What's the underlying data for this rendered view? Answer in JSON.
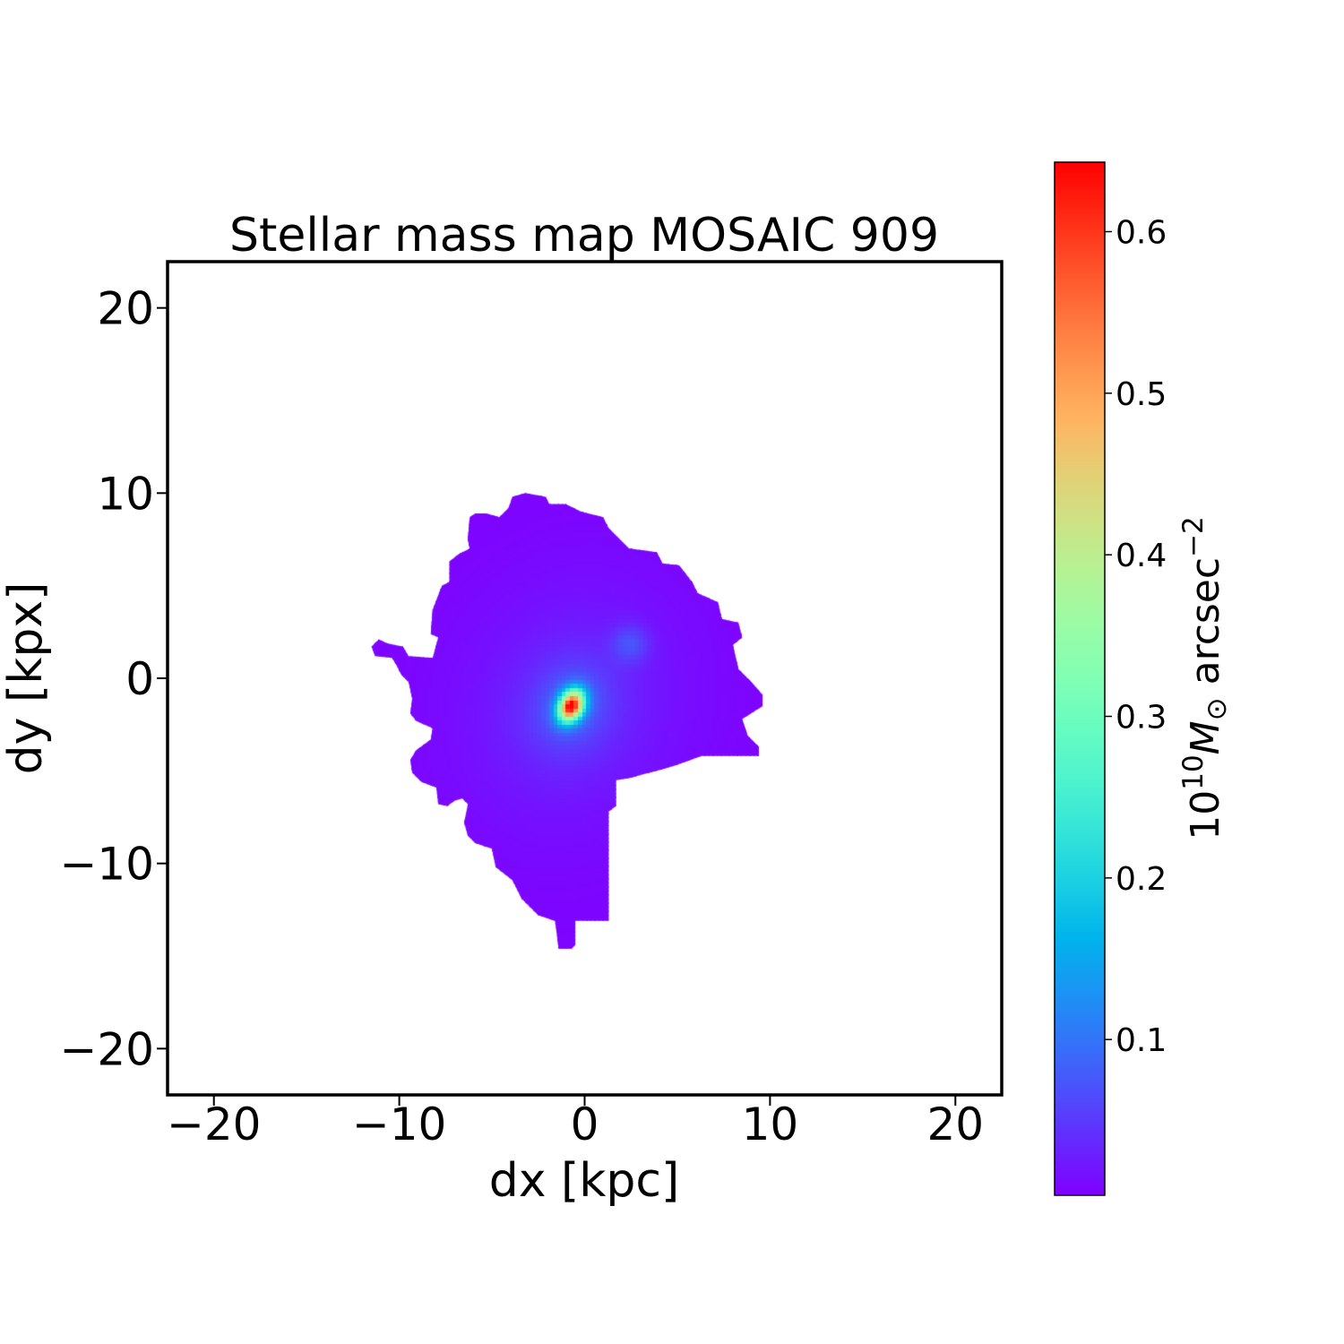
{
  "chart_data": {
    "type": "heatmap",
    "title": "Stellar mass map MOSAIC 909",
    "xlabel": "dx [kpc]",
    "ylabel": "dy [kpx]",
    "xlim": [
      -22.5,
      22.5
    ],
    "ylim": [
      -22.5,
      22.5
    ],
    "xticks": [
      -20,
      -10,
      0,
      10,
      20
    ],
    "yticks": [
      -20,
      -10,
      0,
      10,
      20
    ],
    "xtick_labels": [
      "−20",
      "−10",
      "0",
      "10",
      "20"
    ],
    "ytick_labels": [
      "−20",
      "−10",
      "0",
      "10",
      "20"
    ],
    "grid": false,
    "colormap": "rainbow",
    "colorbar": {
      "range": [
        0.0036,
        0.643
      ],
      "ticks": [
        0.1,
        0.2,
        0.3,
        0.4,
        0.5,
        0.6
      ],
      "tick_labels": [
        "0.1",
        "0.2",
        "0.3",
        "0.4",
        "0.5",
        "0.6"
      ],
      "label_base": "10",
      "label_exp": "10",
      "label_sym": "M",
      "label_sub": "⊙",
      "label_unit": " arcsec",
      "label_unit_exp": "−2"
    },
    "peak": {
      "dx": -0.7,
      "dy": -1.45,
      "value": 0.64
    },
    "secondary_peak": {
      "dx": 2.5,
      "dy": 1.9,
      "value": 0.11
    },
    "outline_kpc": [
      [
        -3.2,
        10.0
      ],
      [
        -2.1,
        9.8
      ],
      [
        -1.9,
        9.4
      ],
      [
        -1.0,
        9.4
      ],
      [
        -0.2,
        9.0
      ],
      [
        1.0,
        8.7
      ],
      [
        1.3,
        8.1
      ],
      [
        2.4,
        7.0
      ],
      [
        3.3,
        6.9
      ],
      [
        3.9,
        6.8
      ],
      [
        4.2,
        6.2
      ],
      [
        5.1,
        6.1
      ],
      [
        5.8,
        5.2
      ],
      [
        6.1,
        4.6
      ],
      [
        7.2,
        4.1
      ],
      [
        7.4,
        3.2
      ],
      [
        8.3,
        3.0
      ],
      [
        8.5,
        2.2
      ],
      [
        8.0,
        1.8
      ],
      [
        8.3,
        0.5
      ],
      [
        9.0,
        -0.2
      ],
      [
        9.6,
        -0.9
      ],
      [
        9.6,
        -1.5
      ],
      [
        8.5,
        -2.2
      ],
      [
        8.8,
        -3.1
      ],
      [
        9.4,
        -3.7
      ],
      [
        9.4,
        -4.2
      ],
      [
        6.3,
        -4.2
      ],
      [
        4.9,
        -4.7
      ],
      [
        3.9,
        -5.0
      ],
      [
        3.1,
        -5.2
      ],
      [
        2.4,
        -5.4
      ],
      [
        1.7,
        -5.5
      ],
      [
        1.7,
        -6.9
      ],
      [
        1.3,
        -7.2
      ],
      [
        1.3,
        -13.1
      ],
      [
        -0.5,
        -13.1
      ],
      [
        -0.5,
        -14.4
      ],
      [
        -0.7,
        -14.6
      ],
      [
        -1.4,
        -14.6
      ],
      [
        -1.6,
        -13.1
      ],
      [
        -2.5,
        -12.8
      ],
      [
        -3.4,
        -11.9
      ],
      [
        -3.9,
        -10.9
      ],
      [
        -4.8,
        -10.2
      ],
      [
        -5.0,
        -9.2
      ],
      [
        -5.9,
        -8.9
      ],
      [
        -6.3,
        -8.5
      ],
      [
        -6.5,
        -7.8
      ],
      [
        -6.3,
        -6.8
      ],
      [
        -6.6,
        -6.5
      ],
      [
        -7.0,
        -6.6
      ],
      [
        -7.4,
        -6.9
      ],
      [
        -7.9,
        -6.8
      ],
      [
        -8.0,
        -5.9
      ],
      [
        -8.8,
        -5.6
      ],
      [
        -9.3,
        -5.1
      ],
      [
        -9.4,
        -4.4
      ],
      [
        -9.1,
        -3.9
      ],
      [
        -8.3,
        -3.3
      ],
      [
        -8.2,
        -2.7
      ],
      [
        -9.1,
        -2.3
      ],
      [
        -9.4,
        -1.9
      ],
      [
        -9.3,
        -1.1
      ],
      [
        -9.5,
        -0.2
      ],
      [
        -9.9,
        0.2
      ],
      [
        -10.2,
        0.8
      ],
      [
        -10.4,
        1.1
      ],
      [
        -11.3,
        1.2
      ],
      [
        -11.5,
        1.7
      ],
      [
        -11.1,
        2.1
      ],
      [
        -10.7,
        1.9
      ],
      [
        -9.8,
        1.7
      ],
      [
        -9.5,
        1.2
      ],
      [
        -8.2,
        1.1
      ],
      [
        -7.9,
        2.2
      ],
      [
        -8.3,
        2.4
      ],
      [
        -8.2,
        3.7
      ],
      [
        -7.7,
        5.0
      ],
      [
        -7.3,
        5.2
      ],
      [
        -7.3,
        6.3
      ],
      [
        -6.8,
        6.7
      ],
      [
        -6.2,
        7.0
      ],
      [
        -6.3,
        7.5
      ],
      [
        -6.2,
        8.7
      ],
      [
        -5.9,
        8.9
      ],
      [
        -5.3,
        8.9
      ],
      [
        -4.6,
        8.7
      ],
      [
        -4.1,
        9.2
      ],
      [
        -3.9,
        9.8
      ]
    ]
  }
}
